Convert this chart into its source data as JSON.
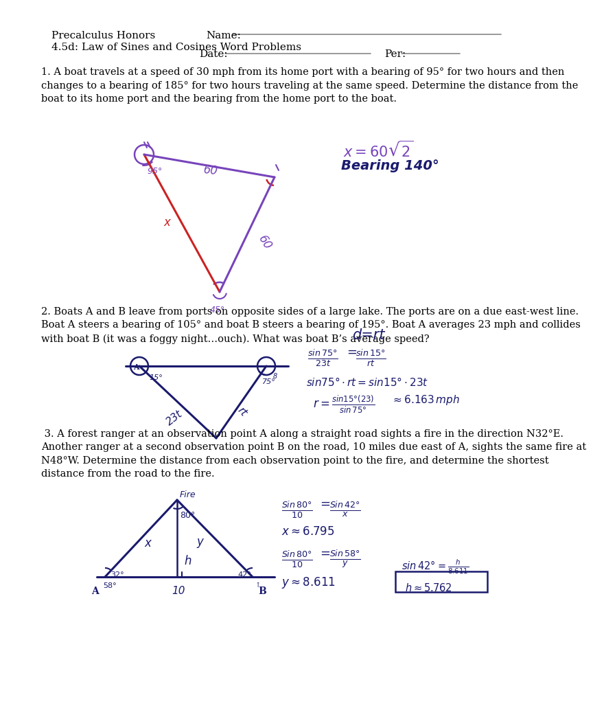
{
  "title_left": "Precalculus Honors",
  "title_right": "Name:",
  "subtitle_left": "4.5d: Law of Sines and Cosines Word Problems",
  "date_label": "Date:",
  "per_label": "Per:",
  "problem1": "1. A boat travels at a speed of 30 mph from its home port with a bearing of 95° for two hours and then\nchanges to a bearing of 185° for two hours traveling at the same speed. Determine the distance from the\nboat to its home port and the bearing from the home port to the boat.",
  "problem2": "2. Boats A and B leave from ports on opposite sides of a large lake. The ports are on a due east-west line.\nBoat A steers a bearing of 105° and boat B steers a bearing of 195°. Boat A averages 23 mph and collides\nwith boat B (it was a foggy night…ouch). What was boat B’s average speed?",
  "problem3": " 3. A forest ranger at an observation point A along a straight road sights a fire in the direction N32°E.\nAnother ranger at a second observation point B on the road, 10 miles due east of A, sights the same fire at\nN48°W. Determine the distance from each observation point to the fire, and determine the shortest\ndistance from the road to the fire.",
  "bg_color": "#ffffff",
  "text_color": "#000000",
  "purple": "#7744bb",
  "red": "#cc2222",
  "blue": "#1a1a6e"
}
